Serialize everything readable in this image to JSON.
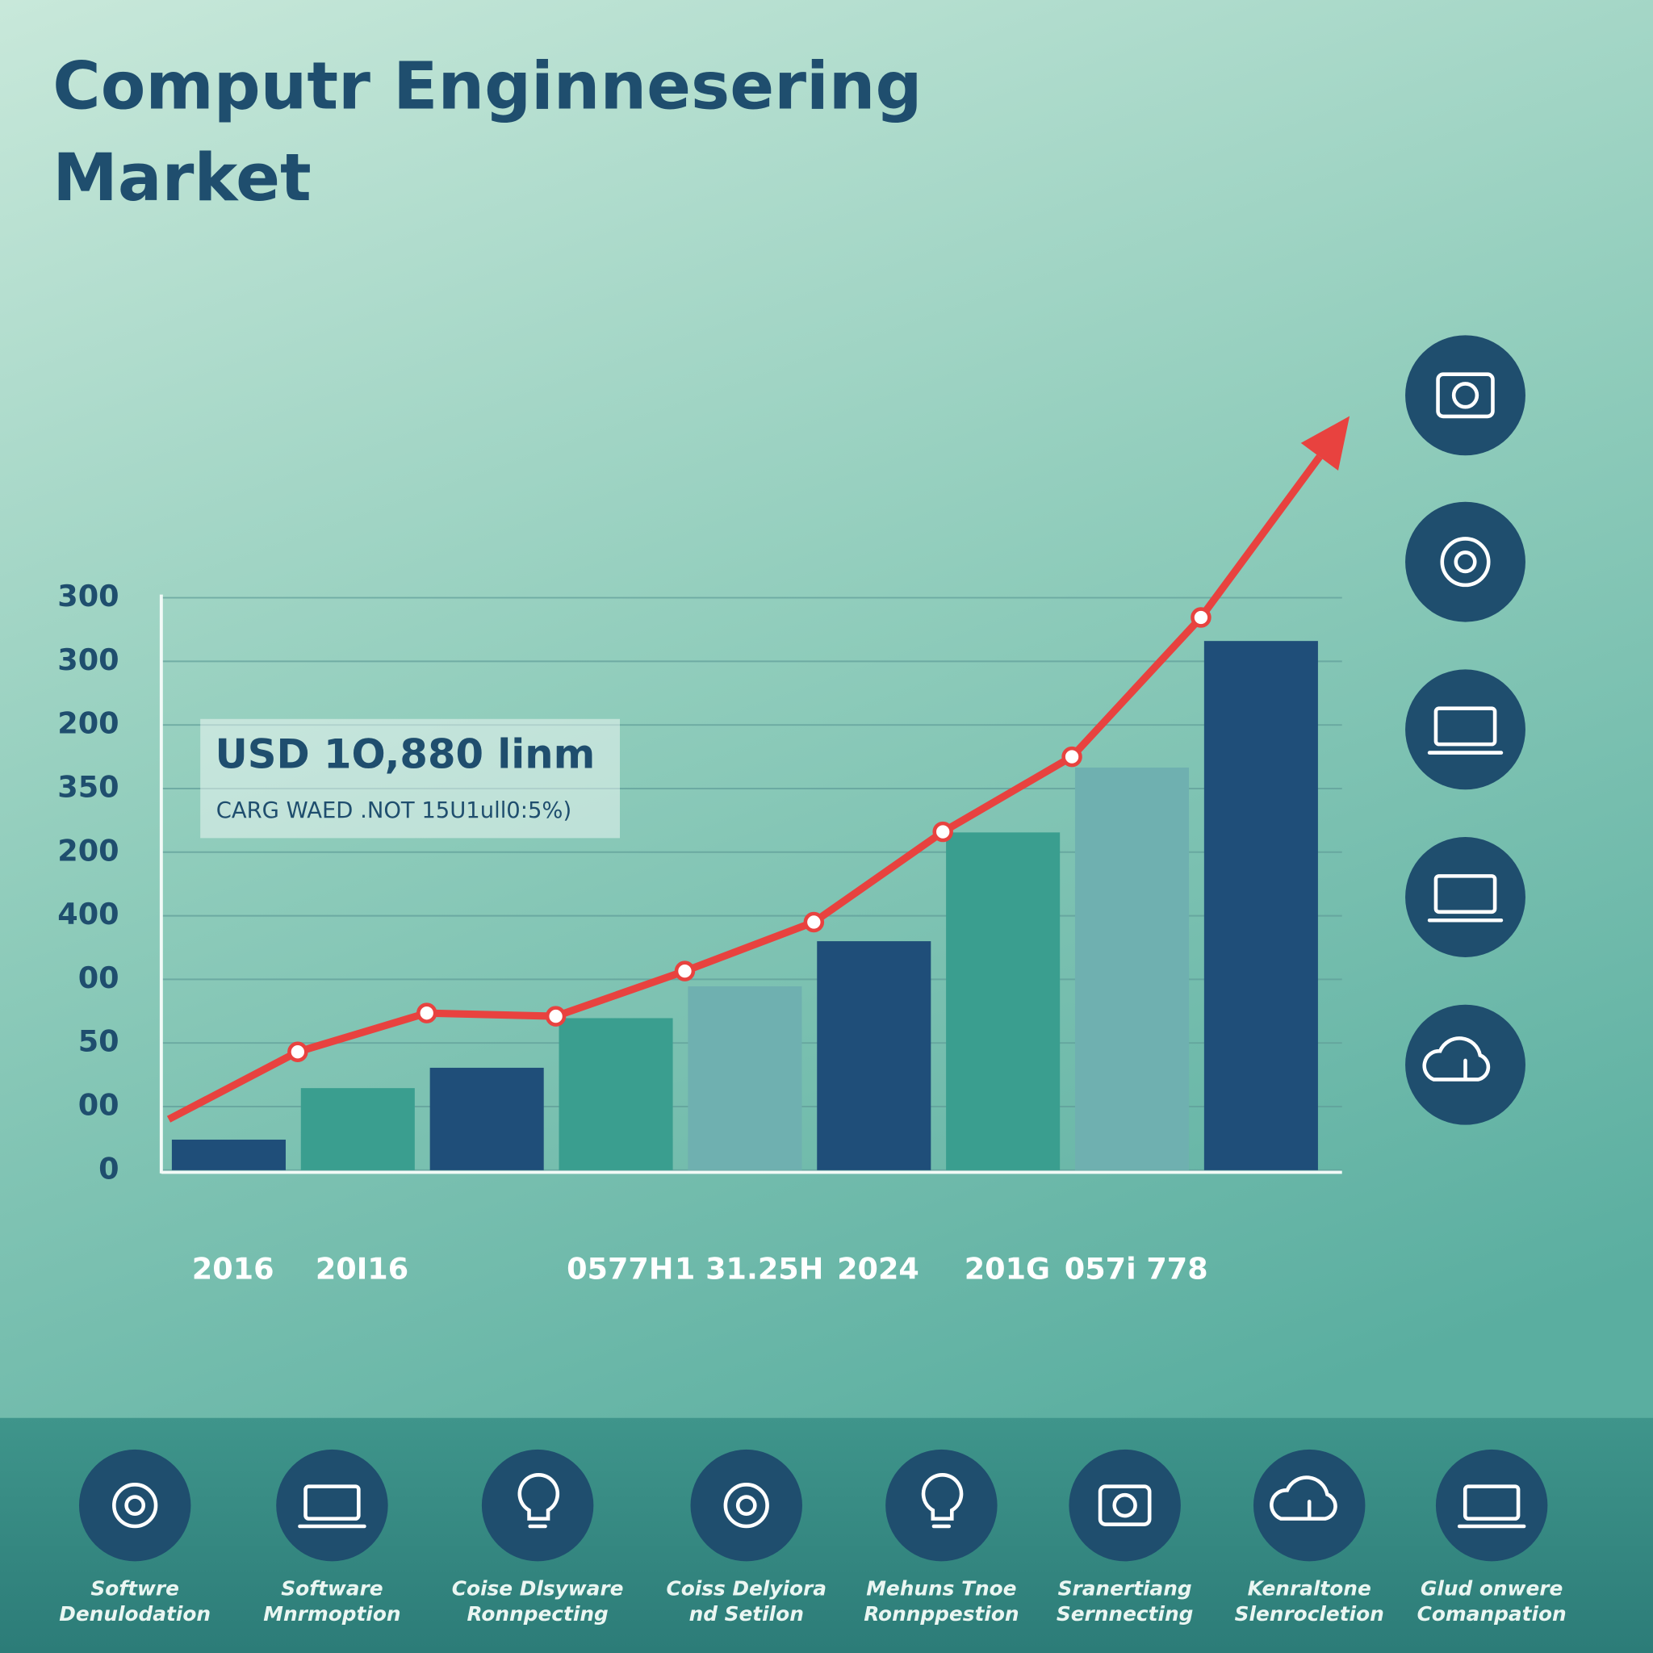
{
  "chart_data": {
    "type": "bar",
    "title": [
      "Computr Enginnesering",
      "Market"
    ],
    "categories": [
      "2016",
      "20I16",
      null,
      "0577H",
      "1 31.25H",
      "2024",
      "201G",
      "057i 778",
      null
    ],
    "values": [
      0.48,
      1.29,
      1.61,
      2.39,
      2.89,
      3.6,
      5.31,
      6.33,
      8.32
    ],
    "colors": [
      "#1f4e79",
      "#3a9e8f",
      "#1f4e79",
      "#3a9e8f",
      "#6fb0b0",
      "#1f4e79",
      "#3a9e8f",
      "#6fb0b0",
      "#1f4e79"
    ],
    "line": {
      "values": [
        0.8,
        1.86,
        2.47,
        2.42,
        3.13,
        3.9,
        5.32,
        6.5,
        8.69
      ],
      "color": "#e8423f"
    },
    "ylim": [
      0,
      9
    ],
    "yticks": [
      0,
      {
        "value": 1,
        "label": "00"
      },
      {
        "value": 2,
        "label": "50"
      },
      {
        "value": 3,
        "label": "00"
      },
      {
        "value": 4,
        "label": "400"
      },
      {
        "value": 5,
        "label": "200"
      },
      {
        "value": 6,
        "label": "350"
      },
      {
        "value": 7,
        "label": "200"
      },
      {
        "value": 8,
        "label": "300"
      },
      {
        "value": 9,
        "label": "300"
      }
    ],
    "grid": true,
    "annotation": {
      "title": "USD 1O,880 linm",
      "subtitle": "CARG WAED .NOT 15U1ull0:5%)"
    }
  },
  "footer_items": [
    [
      "Softwre",
      "Denulodation"
    ],
    [
      "Software",
      "Mnrmoption"
    ],
    [
      "Coise Dlsyware",
      "Ronnpecting"
    ],
    [
      "Coiss Delyiora",
      "nd Setilon"
    ],
    [
      "Mehuns Tnoe",
      "Ronnppestion"
    ],
    [
      "Sranertiang",
      "Sernnecting"
    ],
    [
      "Kenraltone",
      "Slenrocletion"
    ],
    [
      "Glud onwere",
      "Comanpation"
    ]
  ]
}
